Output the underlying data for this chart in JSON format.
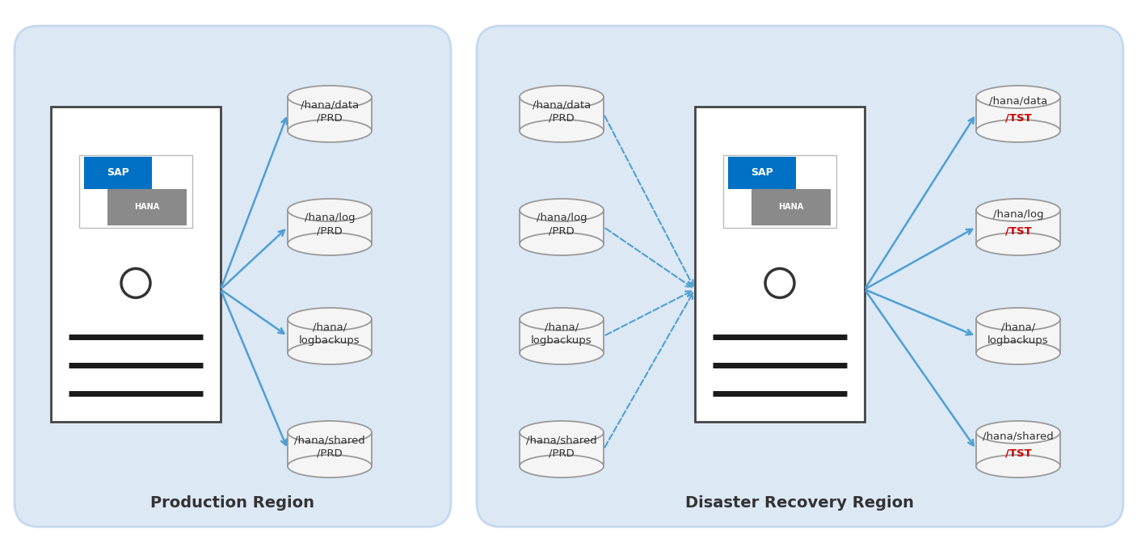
{
  "bg_color": "#ffffff",
  "panel_color": "#dde8f5",
  "panel_edge_color": "#c5d8ee",
  "server_box_color": "#ffffff",
  "server_box_edge": "#444444",
  "cylinder_face_color": "#f5f5f5",
  "cylinder_edge_color": "#999999",
  "arrow_color_solid": "#4e9fd4",
  "arrow_color_dashed": "#4e9fd4",
  "text_color_black": "#333333",
  "text_color_red": "#cc0000",
  "prod_region_label": "Production Region",
  "dr_region_label": "Disaster Recovery Region",
  "prod_volumes": [
    "/hana/data\n/PRD",
    "/hana/log\n/PRD",
    "/hana/\nlogbackups",
    "/hana/shared\n/PRD"
  ],
  "dr_left_volumes": [
    "/hana/data\n/PRD",
    "/hana/log\n/PRD",
    "/hana/\nlogbackups",
    "/hana/shared\n/PRD"
  ],
  "dr_right_volumes_line1": [
    "/hana/data",
    "/hana/log",
    "/hana/",
    "/hana/shared"
  ],
  "dr_right_volumes_line2": [
    "/TST",
    "/TST",
    "logbackups",
    "/TST"
  ],
  "dr_right_volumes_line2_red": [
    true,
    true,
    false,
    true
  ]
}
